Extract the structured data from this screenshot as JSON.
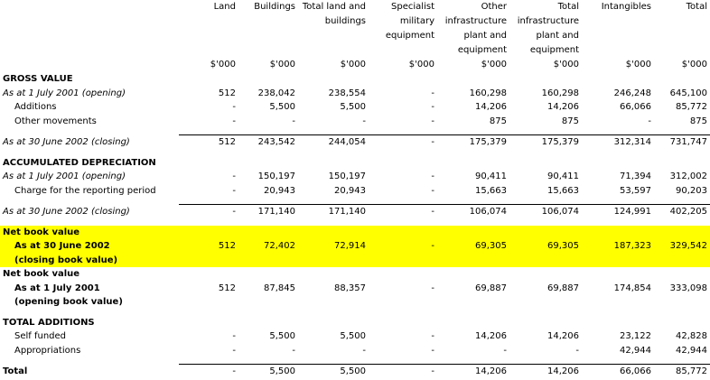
{
  "columns": [
    {
      "label": "Land",
      "unit": "$'000"
    },
    {
      "label": "Buildings",
      "unit": "$'000"
    },
    {
      "label": "Total land and buildings",
      "unit": "$'000"
    },
    {
      "label": "Specialist military equipment",
      "unit": "$'000"
    },
    {
      "label": "Other infrastructure plant and equipment",
      "unit": "$'000"
    },
    {
      "label": "Total infrastructure plant and equipment",
      "unit": "$'000"
    },
    {
      "label": "Intangibles",
      "unit": "$'000"
    },
    {
      "label": "Total",
      "unit": "$'000"
    }
  ],
  "gross": {
    "title": "GROSS VALUE",
    "opening": {
      "label": "As at 1 July 2001 (opening)",
      "values": [
        "512",
        "238,042",
        "238,554",
        "-",
        "160,298",
        "160,298",
        "246,248",
        "645,100"
      ]
    },
    "additions": {
      "label": "Additions",
      "values": [
        "-",
        "5,500",
        "5,500",
        "-",
        "14,206",
        "14,206",
        "66,066",
        "85,772"
      ]
    },
    "other": {
      "label": "Other movements",
      "values": [
        "-",
        "-",
        "-",
        "-",
        "875",
        "875",
        "-",
        "875"
      ]
    },
    "closing": {
      "label": "As at 30 June 2002 (closing)",
      "values": [
        "512",
        "243,542",
        "244,054",
        "-",
        "175,379",
        "175,379",
        "312,314",
        "731,747"
      ]
    }
  },
  "depreciation": {
    "title": "ACCUMULATED DEPRECIATION",
    "opening": {
      "label": "As at 1 July 2001 (opening)",
      "values": [
        "-",
        "150,197",
        "150,197",
        "-",
        "90,411",
        "90,411",
        "71,394",
        "312,002"
      ]
    },
    "charge": {
      "label": "Charge for the reporting period",
      "values": [
        "-",
        "20,943",
        "20,943",
        "-",
        "15,663",
        "15,663",
        "53,597",
        "90,203"
      ]
    },
    "closing": {
      "label": "As at 30 June 2002 (closing)",
      "values": [
        "-",
        "171,140",
        "171,140",
        "-",
        "106,074",
        "106,074",
        "124,991",
        "402,205"
      ]
    }
  },
  "nbv_closing": {
    "title": "Net book value",
    "line1": "As at 30 June 2002",
    "line2": "(closing book value)",
    "values": [
      "512",
      "72,402",
      "72,914",
      "-",
      "69,305",
      "69,305",
      "187,323",
      "329,542"
    ],
    "highlight_color": "#ffff00"
  },
  "nbv_opening": {
    "title": "Net book value",
    "line1": "As at 1 July 2001",
    "line2": "(opening book value)",
    "values": [
      "512",
      "87,845",
      "88,357",
      "-",
      "69,887",
      "69,887",
      "174,854",
      "333,098"
    ]
  },
  "additions": {
    "title": "TOTAL ADDITIONS",
    "self_funded": {
      "label": "Self funded",
      "values": [
        "-",
        "5,500",
        "5,500",
        "-",
        "14,206",
        "14,206",
        "23,122",
        "42,828"
      ]
    },
    "appropriations": {
      "label": "Appropriations",
      "values": [
        "-",
        "-",
        "-",
        "-",
        "-",
        "-",
        "42,944",
        "42,944"
      ]
    },
    "total": {
      "label": "Total",
      "values": [
        "-",
        "5,500",
        "5,500",
        "-",
        "14,206",
        "14,206",
        "66,066",
        "85,772"
      ]
    }
  }
}
